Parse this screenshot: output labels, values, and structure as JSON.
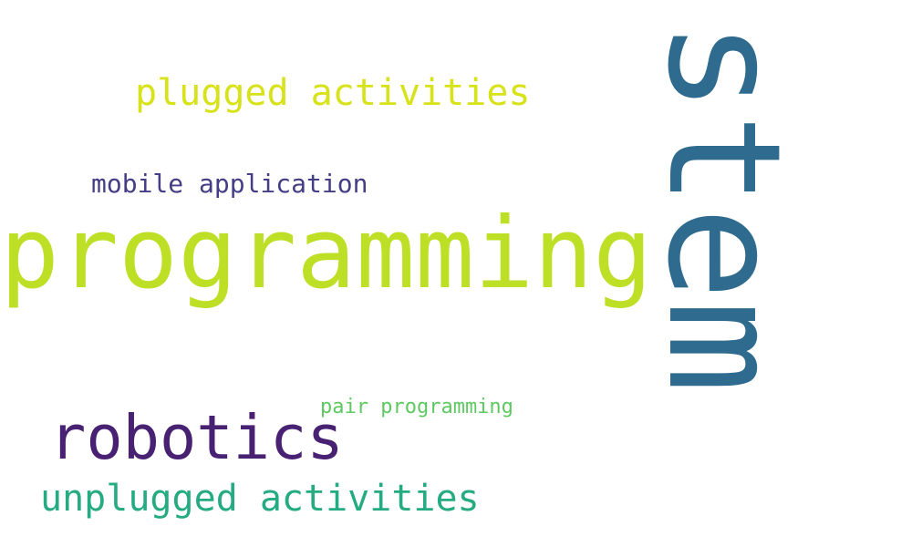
{
  "words": [
    {
      "text": "stem",
      "color": "#2e6b8e"
    },
    {
      "text": "programming",
      "color": "#bddf26"
    },
    {
      "text": "plugged activities",
      "color": "#d8e219"
    },
    {
      "text": "robotics",
      "color": "#482173"
    },
    {
      "text": "unplugged activities",
      "color": "#25ab82"
    },
    {
      "text": "mobile application",
      "color": "#433e85"
    },
    {
      "text": "pair programming",
      "color": "#5ec962"
    }
  ]
}
